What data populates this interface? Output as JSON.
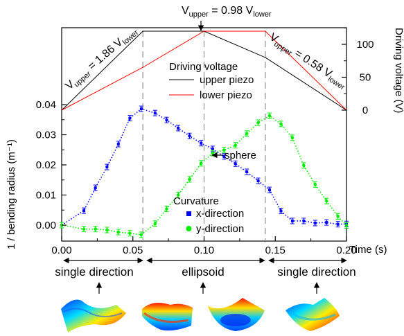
{
  "chart_data": [
    {
      "type": "line",
      "title": "",
      "xlabel": "",
      "ylabel": "Driving voltage (V)",
      "xlim": [
        0.0,
        0.2
      ],
      "ylim": [
        -10,
        130
      ],
      "yticks": [
        0,
        50,
        100
      ],
      "series": [
        {
          "name": "upper piezo",
          "color": "#000000",
          "x": [
            0.0,
            0.057,
            0.1,
            0.143,
            0.2
          ],
          "y": [
            0,
            120,
            120,
            80,
            0
          ]
        },
        {
          "name": "lower piezo",
          "color": "#ff0000",
          "x": [
            0.0,
            0.057,
            0.1,
            0.143,
            0.2
          ],
          "y": [
            0,
            65,
            120,
            120,
            0
          ]
        }
      ],
      "legend": {
        "title": "Driving voltage",
        "placement": "top-center"
      },
      "annotations": {
        "left": {
          "main": "V",
          "sub1": "upper",
          "mid": " = 1.86 V",
          "sub2": "lower"
        },
        "top": {
          "main": "V",
          "sub1": "upper",
          "mid": " = 0.98 V",
          "sub2": "lower"
        },
        "right": {
          "main": "V",
          "sub1": "upper",
          "mid": " = 0.58 V",
          "sub2": "lower"
        }
      }
    },
    {
      "type": "scatter",
      "title": "",
      "xlabel": "Time (s)",
      "ylabel": "1 / bending radius (m⁻¹)",
      "xlim": [
        0.0,
        0.2
      ],
      "ylim": [
        -0.005,
        0.045
      ],
      "xticks": [
        "0.00",
        "0.05",
        "0.10",
        "0.15",
        "0.20"
      ],
      "yticks": [
        "0.00",
        "0.01",
        "0.02",
        "0.03",
        "0.04"
      ],
      "legend": {
        "title": "Curvature",
        "placement": "bottom-center"
      },
      "series": [
        {
          "name": "x-direction",
          "color": "#0000ff",
          "marker": "square",
          "x": [
            0.0,
            0.0156,
            0.0237,
            0.0318,
            0.0398,
            0.0479,
            0.0559,
            0.0656,
            0.0737,
            0.0818,
            0.0898,
            0.0979,
            0.106,
            0.114,
            0.122,
            0.13,
            0.138,
            0.146,
            0.154,
            0.162,
            0.17,
            0.178,
            0.186,
            0.194,
            0.2
          ],
          "y": [
            0.0,
            0.0048,
            0.0124,
            0.0193,
            0.0269,
            0.0355,
            0.0386,
            0.0372,
            0.0349,
            0.0322,
            0.0296,
            0.0272,
            0.0253,
            0.0228,
            0.0204,
            0.0177,
            0.0147,
            0.0117,
            0.0047,
            0.0014,
            0.0014,
            0.0007,
            0.0009,
            0.0003,
            0.0004
          ]
        },
        {
          "name": "y-direction",
          "color": "#00ee00",
          "marker": "circle",
          "x": [
            0.0,
            0.0156,
            0.0237,
            0.0318,
            0.0398,
            0.0479,
            0.0559,
            0.0656,
            0.0737,
            0.0818,
            0.0898,
            0.0979,
            0.106,
            0.114,
            0.122,
            0.13,
            0.138,
            0.146,
            0.154,
            0.162,
            0.17,
            0.178,
            0.186,
            0.194,
            0.2
          ],
          "y": [
            0.0,
            -0.0013,
            -0.0013,
            -0.0016,
            -0.0023,
            -0.0027,
            -0.0032,
            0.0005,
            0.0054,
            0.01,
            0.0152,
            0.0205,
            0.0239,
            0.0249,
            0.0265,
            0.0304,
            0.034,
            0.0363,
            0.0336,
            0.029,
            0.0198,
            0.0135,
            0.008,
            0.0029,
            -0.0001
          ]
        }
      ],
      "vlines": [
        0.057,
        0.1,
        0.143
      ],
      "annotations": {
        "sphere": "sphere"
      }
    }
  ],
  "regions": [
    "single direction",
    "ellipsoid",
    "single direction"
  ]
}
